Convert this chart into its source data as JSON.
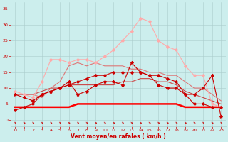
{
  "x": [
    0,
    1,
    2,
    3,
    4,
    5,
    6,
    7,
    8,
    9,
    10,
    11,
    12,
    13,
    14,
    15,
    16,
    17,
    18,
    19,
    20,
    21,
    22,
    23
  ],
  "series": [
    {
      "y": [
        3,
        4,
        5,
        8,
        9,
        10,
        11,
        12,
        13,
        14,
        14,
        15,
        15,
        15,
        15,
        14,
        14,
        13,
        12,
        8,
        5,
        5,
        4,
        4
      ],
      "color": "#cc0000",
      "lw": 0.8,
      "marker": "D",
      "ms": 1.8,
      "zorder": 5
    },
    {
      "y": [
        4,
        4,
        4,
        4,
        4,
        4,
        4,
        5,
        5,
        5,
        5,
        5,
        5,
        5,
        5,
        5,
        5,
        5,
        5,
        4,
        4,
        4,
        4,
        4
      ],
      "color": "#ff0000",
      "lw": 1.8,
      "marker": null,
      "ms": 0,
      "zorder": 4
    },
    {
      "y": [
        8,
        7,
        6,
        8,
        9,
        10,
        12,
        8,
        9,
        11,
        12,
        12,
        11,
        18,
        15,
        14,
        11,
        10,
        10,
        8,
        8,
        10,
        14,
        1
      ],
      "color": "#cc0000",
      "lw": 0.8,
      "marker": "*",
      "ms": 3,
      "zorder": 6
    },
    {
      "y": [
        8,
        8,
        8,
        9,
        10,
        10,
        11,
        11,
        11,
        11,
        11,
        11,
        12,
        12,
        13,
        13,
        12,
        12,
        11,
        9,
        8,
        7,
        6,
        5
      ],
      "color": "#cc4444",
      "lw": 0.8,
      "marker": null,
      "ms": 0,
      "zorder": 3
    },
    {
      "y": [
        8,
        8,
        8,
        7,
        10,
        12,
        17,
        18,
        17,
        18,
        17,
        17,
        17,
        16,
        16,
        15,
        15,
        14,
        14,
        12,
        10,
        10,
        8,
        6
      ],
      "color": "#dd7777",
      "lw": 0.8,
      "marker": null,
      "ms": 0,
      "zorder": 3
    },
    {
      "y": [
        9,
        8,
        7,
        12,
        19,
        19,
        18,
        19,
        19,
        18,
        20,
        22,
        25,
        28,
        32,
        31,
        25,
        23,
        22,
        17,
        14,
        14,
        5,
        4
      ],
      "color": "#ffaaaa",
      "lw": 0.8,
      "marker": "D",
      "ms": 1.8,
      "zorder": 4
    }
  ],
  "xlabel": "Vent moyen/en rafales ( km/h )",
  "ylim": [
    -2,
    37
  ],
  "xlim": [
    -0.5,
    23.5
  ],
  "yticks": [
    0,
    5,
    10,
    15,
    20,
    25,
    30,
    35
  ],
  "xticks": [
    0,
    1,
    2,
    3,
    4,
    5,
    6,
    7,
    8,
    9,
    10,
    11,
    12,
    13,
    14,
    15,
    16,
    17,
    18,
    19,
    20,
    21,
    22,
    23
  ],
  "bg_color": "#cceeed",
  "grid_color": "#aacccc",
  "label_color": "#cc0000",
  "arrow_color": "#cc0000"
}
